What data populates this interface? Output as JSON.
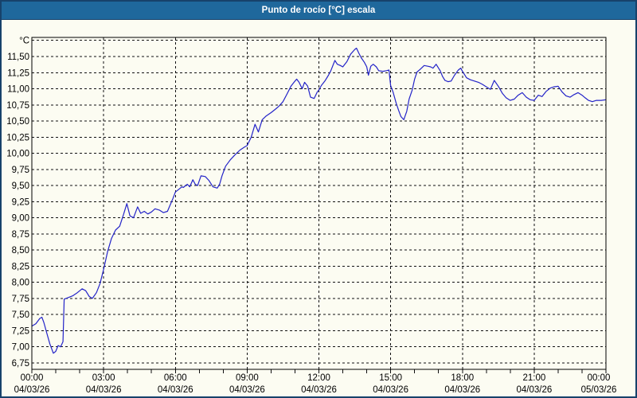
{
  "window": {
    "title": "Punto de rocío [°C] escala",
    "title_bar_color": "#1F689C",
    "title_text_color": "#FFFFFF",
    "border_color": "#17426B",
    "background_color": "#FCFCF2"
  },
  "chart_data": {
    "type": "line",
    "title": "Punto de rocío [°C] escala",
    "series_name": "Punto de rocío",
    "line_color": "#2323C8",
    "grid": "dashed-black",
    "legend": "none",
    "y_axis": {
      "unit": "°C",
      "min": 6.75,
      "max_labeled": 11.5,
      "grid_max": 11.75,
      "step": 0.25,
      "decimal_separator": "comma",
      "tick_labels": [
        "11,50",
        "11,25",
        "11,00",
        "10,75",
        "10,50",
        "10,25",
        "10,00",
        "9,75",
        "9,50",
        "9,25",
        "9,00",
        "8,75",
        "8,50",
        "8,25",
        "8,00",
        "7,75",
        "7,50",
        "7,25",
        "7,00",
        "6,75"
      ]
    },
    "x_axis": {
      "range_hours": [
        0,
        24
      ],
      "major_step_hours": 3,
      "minor_tick_hours": 1,
      "ticks": [
        {
          "time": "00:00",
          "date": "04/03/26"
        },
        {
          "time": "03:00",
          "date": "04/03/26"
        },
        {
          "time": "06:00",
          "date": "04/03/26"
        },
        {
          "time": "09:00",
          "date": "04/03/26"
        },
        {
          "time": "12:00",
          "date": "04/03/26"
        },
        {
          "time": "15:00",
          "date": "04/03/26"
        },
        {
          "time": "18:00",
          "date": "04/03/26"
        },
        {
          "time": "21:00",
          "date": "04/03/26"
        },
        {
          "time": "00:00",
          "date": "05/03/26"
        }
      ]
    },
    "points": [
      [
        0,
        7.32
      ],
      [
        0.17,
        7.36
      ],
      [
        0.33,
        7.44
      ],
      [
        0.42,
        7.46
      ],
      [
        0.5,
        7.38
      ],
      [
        0.62,
        7.22
      ],
      [
        0.75,
        7.05
      ],
      [
        0.9,
        6.9
      ],
      [
        1,
        6.93
      ],
      [
        1.1,
        7.02
      ],
      [
        1.2,
        7
      ],
      [
        1.3,
        7.08
      ],
      [
        1.35,
        7.74
      ],
      [
        1.5,
        7.76
      ],
      [
        1.7,
        7.79
      ],
      [
        1.9,
        7.84
      ],
      [
        2.1,
        7.9
      ],
      [
        2.25,
        7.87
      ],
      [
        2.4,
        7.78
      ],
      [
        2.53,
        7.75
      ],
      [
        2.7,
        7.84
      ],
      [
        2.85,
        7.98
      ],
      [
        3,
        8.2
      ],
      [
        3.17,
        8.48
      ],
      [
        3.33,
        8.68
      ],
      [
        3.5,
        8.81
      ],
      [
        3.67,
        8.87
      ],
      [
        3.83,
        9.05
      ],
      [
        3.97,
        9.22
      ],
      [
        4.1,
        9.03
      ],
      [
        4.25,
        9
      ],
      [
        4.42,
        9.17
      ],
      [
        4.55,
        9.07
      ],
      [
        4.7,
        9.1
      ],
      [
        4.85,
        9.06
      ],
      [
        5,
        9.09
      ],
      [
        5.15,
        9.14
      ],
      [
        5.33,
        9.12
      ],
      [
        5.5,
        9.08
      ],
      [
        5.67,
        9.1
      ],
      [
        5.75,
        9.17
      ],
      [
        5.9,
        9.3
      ],
      [
        6,
        9.4
      ],
      [
        6.17,
        9.45
      ],
      [
        6.27,
        9.48
      ],
      [
        6.33,
        9.47
      ],
      [
        6.5,
        9.52
      ],
      [
        6.6,
        9.48
      ],
      [
        6.73,
        9.59
      ],
      [
        6.83,
        9.52
      ],
      [
        6.93,
        9.5
      ],
      [
        7.07,
        9.65
      ],
      [
        7.25,
        9.64
      ],
      [
        7.4,
        9.58
      ],
      [
        7.57,
        9.48
      ],
      [
        7.75,
        9.46
      ],
      [
        7.85,
        9.52
      ],
      [
        7.95,
        9.65
      ],
      [
        8.1,
        9.8
      ],
      [
        8.3,
        9.9
      ],
      [
        8.5,
        9.98
      ],
      [
        8.7,
        10.05
      ],
      [
        8.9,
        10.1
      ],
      [
        9,
        10.12
      ],
      [
        9.17,
        10.25
      ],
      [
        9.33,
        10.45
      ],
      [
        9.47,
        10.33
      ],
      [
        9.63,
        10.52
      ],
      [
        9.8,
        10.58
      ],
      [
        10,
        10.63
      ],
      [
        10.17,
        10.68
      ],
      [
        10.33,
        10.73
      ],
      [
        10.5,
        10.8
      ],
      [
        10.67,
        10.92
      ],
      [
        10.83,
        11.04
      ],
      [
        11,
        11.12
      ],
      [
        11.07,
        11.15
      ],
      [
        11.17,
        11.1
      ],
      [
        11.3,
        11
      ],
      [
        11.4,
        11.1
      ],
      [
        11.53,
        11.04
      ],
      [
        11.65,
        10.87
      ],
      [
        11.8,
        10.85
      ],
      [
        11.93,
        10.95
      ],
      [
        12,
        10.98
      ],
      [
        12.1,
        11.05
      ],
      [
        12.25,
        11.12
      ],
      [
        12.4,
        11.21
      ],
      [
        12.5,
        11.28
      ],
      [
        12.67,
        11.44
      ],
      [
        12.77,
        11.38
      ],
      [
        12.9,
        11.36
      ],
      [
        13,
        11.34
      ],
      [
        13.17,
        11.42
      ],
      [
        13.33,
        11.54
      ],
      [
        13.5,
        11.61
      ],
      [
        13.57,
        11.63
      ],
      [
        13.67,
        11.55
      ],
      [
        13.77,
        11.48
      ],
      [
        13.9,
        11.41
      ],
      [
        14,
        11.34
      ],
      [
        14.07,
        11.21
      ],
      [
        14.17,
        11.35
      ],
      [
        14.27,
        11.38
      ],
      [
        14.4,
        11.34
      ],
      [
        14.5,
        11.28
      ],
      [
        14.67,
        11.27
      ],
      [
        14.83,
        11.28
      ],
      [
        14.93,
        11.29
      ],
      [
        15,
        11.05
      ],
      [
        15.1,
        10.95
      ],
      [
        15.23,
        10.78
      ],
      [
        15.33,
        10.67
      ],
      [
        15.43,
        10.57
      ],
      [
        15.55,
        10.52
      ],
      [
        15.67,
        10.65
      ],
      [
        15.77,
        10.84
      ],
      [
        15.9,
        10.98
      ],
      [
        16,
        11.15
      ],
      [
        16.1,
        11.26
      ],
      [
        16.23,
        11.3
      ],
      [
        16.4,
        11.36
      ],
      [
        16.55,
        11.35
      ],
      [
        16.67,
        11.34
      ],
      [
        16.77,
        11.32
      ],
      [
        16.9,
        11.38
      ],
      [
        17.07,
        11.28
      ],
      [
        17.17,
        11.19
      ],
      [
        17.27,
        11.13
      ],
      [
        17.4,
        11.11
      ],
      [
        17.53,
        11.12
      ],
      [
        17.67,
        11.21
      ],
      [
        17.83,
        11.29
      ],
      [
        17.93,
        11.32
      ],
      [
        18,
        11.27
      ],
      [
        18.17,
        11.17
      ],
      [
        18.33,
        11.14
      ],
      [
        18.5,
        11.12
      ],
      [
        18.67,
        11.1
      ],
      [
        18.83,
        11.07
      ],
      [
        19,
        11.03
      ],
      [
        19.17,
        10.99
      ],
      [
        19.33,
        11.13
      ],
      [
        19.5,
        11.04
      ],
      [
        19.67,
        10.93
      ],
      [
        19.83,
        10.86
      ],
      [
        20,
        10.82
      ],
      [
        20.17,
        10.84
      ],
      [
        20.33,
        10.9
      ],
      [
        20.5,
        10.94
      ],
      [
        20.67,
        10.87
      ],
      [
        20.83,
        10.83
      ],
      [
        21,
        10.82
      ],
      [
        21.17,
        10.9
      ],
      [
        21.33,
        10.88
      ],
      [
        21.5,
        10.96
      ],
      [
        21.67,
        11.01
      ],
      [
        21.83,
        11.03
      ],
      [
        22,
        11.04
      ],
      [
        22.17,
        10.95
      ],
      [
        22.33,
        10.89
      ],
      [
        22.5,
        10.87
      ],
      [
        22.67,
        10.91
      ],
      [
        22.83,
        10.94
      ],
      [
        23,
        10.9
      ],
      [
        23.13,
        10.86
      ],
      [
        23.27,
        10.82
      ],
      [
        23.43,
        10.8
      ],
      [
        23.6,
        10.82
      ],
      [
        23.8,
        10.82
      ],
      [
        24,
        10.83
      ]
    ]
  }
}
